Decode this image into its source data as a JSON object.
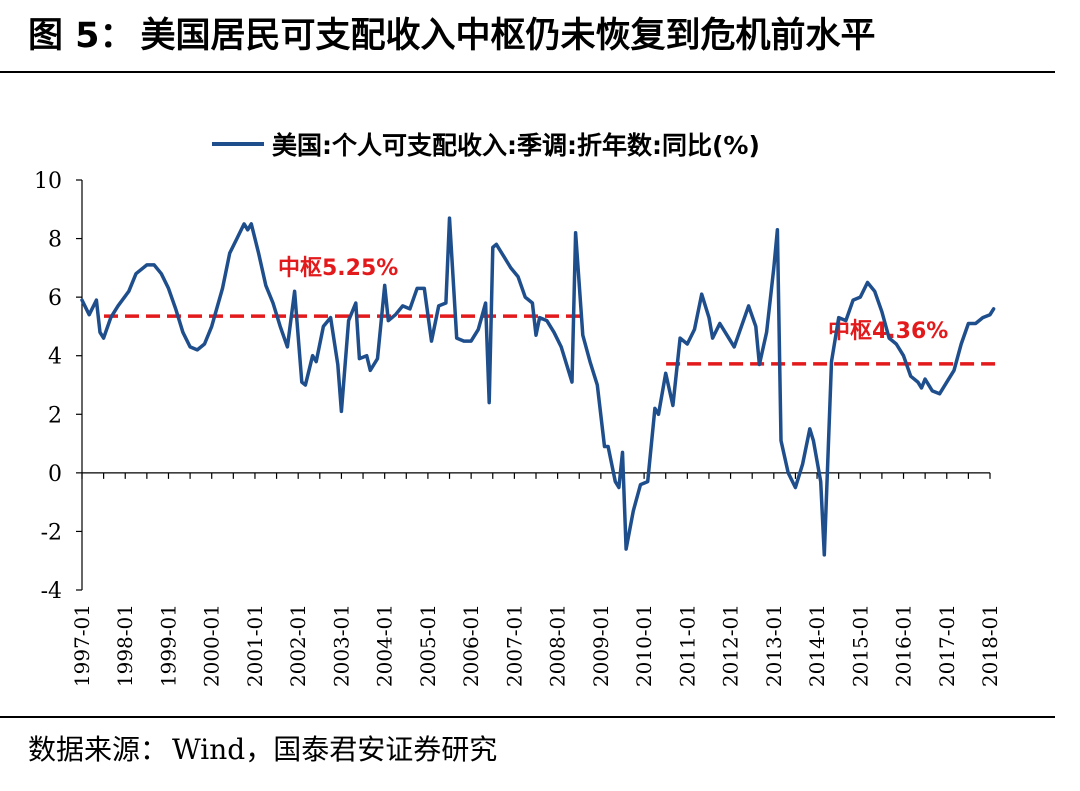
{
  "header": {
    "figure_no": "图 5：",
    "title": "美国居民可支配收入中枢仍未恢复到危机前水平"
  },
  "footer": {
    "source_label": "数据来源：",
    "source_text": "Wind，国泰君安证券研究"
  },
  "colors": {
    "series": "#1f4e8c",
    "reference": "#e31a1c",
    "axis": "#000000"
  },
  "chart_data": {
    "type": "line",
    "title": "",
    "xlabel": "",
    "ylabel": "",
    "ylim": [
      -4,
      10
    ],
    "yticks": [
      -4,
      -2,
      0,
      2,
      4,
      6,
      8,
      10
    ],
    "xticks": [
      "1997-01",
      "1998-01",
      "1999-01",
      "2000-01",
      "2001-01",
      "2002-01",
      "2003-01",
      "2004-01",
      "2005-01",
      "2006-01",
      "2007-01",
      "2008-01",
      "2009-01",
      "2010-01",
      "2011-01",
      "2012-01",
      "2013-01",
      "2014-01",
      "2015-01",
      "2016-01",
      "2017-01",
      "2018-01"
    ],
    "grid": false,
    "legend_position": "top",
    "series": [
      {
        "name": "美国:个人可支配收入:季调:折年数:同比(%)",
        "points": [
          [
            "1997-01",
            5.9
          ],
          [
            "1997-03",
            5.4
          ],
          [
            "1997-05",
            5.9
          ],
          [
            "1997-06",
            4.8
          ],
          [
            "1997-07",
            4.6
          ],
          [
            "1997-09",
            5.3
          ],
          [
            "1997-11",
            5.7
          ],
          [
            "1998-02",
            6.2
          ],
          [
            "1998-04",
            6.8
          ],
          [
            "1998-07",
            7.1
          ],
          [
            "1998-09",
            7.1
          ],
          [
            "1998-11",
            6.8
          ],
          [
            "1999-01",
            6.3
          ],
          [
            "1999-03",
            5.6
          ],
          [
            "1999-05",
            4.8
          ],
          [
            "1999-07",
            4.3
          ],
          [
            "1999-09",
            4.2
          ],
          [
            "1999-11",
            4.4
          ],
          [
            "2000-01",
            5.0
          ],
          [
            "2000-04",
            6.3
          ],
          [
            "2000-06",
            7.5
          ],
          [
            "2000-08",
            8.0
          ],
          [
            "2000-10",
            8.5
          ],
          [
            "2000-11",
            8.3
          ],
          [
            "2000-12",
            8.5
          ],
          [
            "2001-02",
            7.5
          ],
          [
            "2001-04",
            6.4
          ],
          [
            "2001-06",
            5.8
          ],
          [
            "2001-08",
            5.0
          ],
          [
            "2001-10",
            4.3
          ],
          [
            "2001-12",
            6.2
          ],
          [
            "2002-02",
            3.1
          ],
          [
            "2002-03",
            3.0
          ],
          [
            "2002-05",
            4.0
          ],
          [
            "2002-06",
            3.8
          ],
          [
            "2002-08",
            5.0
          ],
          [
            "2002-10",
            5.3
          ],
          [
            "2002-12",
            3.7
          ],
          [
            "2003-01",
            2.1
          ],
          [
            "2003-03",
            5.2
          ],
          [
            "2003-05",
            5.8
          ],
          [
            "2003-06",
            3.9
          ],
          [
            "2003-08",
            4.0
          ],
          [
            "2003-09",
            3.5
          ],
          [
            "2003-11",
            3.9
          ],
          [
            "2004-01",
            6.4
          ],
          [
            "2004-02",
            5.2
          ],
          [
            "2004-04",
            5.4
          ],
          [
            "2004-06",
            5.7
          ],
          [
            "2004-08",
            5.6
          ],
          [
            "2004-10",
            6.3
          ],
          [
            "2004-12",
            6.3
          ],
          [
            "2005-02",
            4.5
          ],
          [
            "2005-04",
            5.7
          ],
          [
            "2005-06",
            5.8
          ],
          [
            "2005-07",
            8.7
          ],
          [
            "2005-09",
            4.6
          ],
          [
            "2005-11",
            4.5
          ],
          [
            "2006-01",
            4.5
          ],
          [
            "2006-03",
            4.9
          ],
          [
            "2006-05",
            5.8
          ],
          [
            "2006-06",
            2.4
          ],
          [
            "2006-07",
            7.7
          ],
          [
            "2006-08",
            7.8
          ],
          [
            "2006-10",
            7.4
          ],
          [
            "2006-12",
            7.0
          ],
          [
            "2007-02",
            6.7
          ],
          [
            "2007-04",
            6.0
          ],
          [
            "2007-06",
            5.8
          ],
          [
            "2007-07",
            4.7
          ],
          [
            "2007-08",
            5.3
          ],
          [
            "2007-10",
            5.2
          ],
          [
            "2007-12",
            4.8
          ],
          [
            "2008-02",
            4.3
          ],
          [
            "2008-04",
            3.5
          ],
          [
            "2008-05",
            3.1
          ],
          [
            "2008-06",
            8.2
          ],
          [
            "2008-08",
            4.7
          ],
          [
            "2008-10",
            3.8
          ],
          [
            "2008-12",
            3.0
          ],
          [
            "2009-02",
            0.9
          ],
          [
            "2009-03",
            0.9
          ],
          [
            "2009-05",
            -0.3
          ],
          [
            "2009-06",
            -0.5
          ],
          [
            "2009-07",
            0.7
          ],
          [
            "2009-08",
            -2.6
          ],
          [
            "2009-10",
            -1.3
          ],
          [
            "2009-12",
            -0.4
          ],
          [
            "2010-02",
            -0.3
          ],
          [
            "2010-04",
            2.2
          ],
          [
            "2010-05",
            2.0
          ],
          [
            "2010-07",
            3.4
          ],
          [
            "2010-09",
            2.3
          ],
          [
            "2010-11",
            4.6
          ],
          [
            "2011-01",
            4.4
          ],
          [
            "2011-03",
            4.9
          ],
          [
            "2011-05",
            6.1
          ],
          [
            "2011-07",
            5.3
          ],
          [
            "2011-08",
            4.6
          ],
          [
            "2011-10",
            5.1
          ],
          [
            "2011-12",
            4.7
          ],
          [
            "2012-02",
            4.3
          ],
          [
            "2012-04",
            5.0
          ],
          [
            "2012-06",
            5.7
          ],
          [
            "2012-08",
            5.0
          ],
          [
            "2012-09",
            3.7
          ],
          [
            "2012-11",
            4.8
          ],
          [
            "2013-01",
            7.0
          ],
          [
            "2013-02",
            8.3
          ],
          [
            "2013-03",
            1.1
          ],
          [
            "2013-05",
            0.0
          ],
          [
            "2013-07",
            -0.5
          ],
          [
            "2013-09",
            0.3
          ],
          [
            "2013-11",
            1.5
          ],
          [
            "2013-12",
            1.1
          ],
          [
            "2014-02",
            -0.3
          ],
          [
            "2014-03",
            -2.8
          ],
          [
            "2014-05",
            3.8
          ],
          [
            "2014-07",
            5.3
          ],
          [
            "2014-09",
            5.2
          ],
          [
            "2014-11",
            5.9
          ],
          [
            "2015-01",
            6.0
          ],
          [
            "2015-03",
            6.5
          ],
          [
            "2015-05",
            6.2
          ],
          [
            "2015-07",
            5.5
          ],
          [
            "2015-09",
            4.6
          ],
          [
            "2015-11",
            4.4
          ],
          [
            "2016-01",
            4.0
          ],
          [
            "2016-03",
            3.3
          ],
          [
            "2016-05",
            3.1
          ],
          [
            "2016-06",
            2.9
          ],
          [
            "2016-07",
            3.2
          ],
          [
            "2016-09",
            2.8
          ],
          [
            "2016-11",
            2.7
          ],
          [
            "2017-01",
            3.1
          ],
          [
            "2017-03",
            3.5
          ],
          [
            "2017-05",
            4.4
          ],
          [
            "2017-07",
            5.1
          ],
          [
            "2017-09",
            5.1
          ],
          [
            "2017-11",
            5.3
          ],
          [
            "2018-01",
            5.4
          ],
          [
            "2018-02",
            5.6
          ]
        ]
      }
    ],
    "reference_lines": [
      {
        "label": "中枢5.25%",
        "value": 5.25,
        "from": "1997-01",
        "to": "2009-01"
      },
      {
        "label": "中枢4.36%",
        "value": 4.36,
        "from": "2010-01",
        "to": "2018-01"
      }
    ]
  }
}
